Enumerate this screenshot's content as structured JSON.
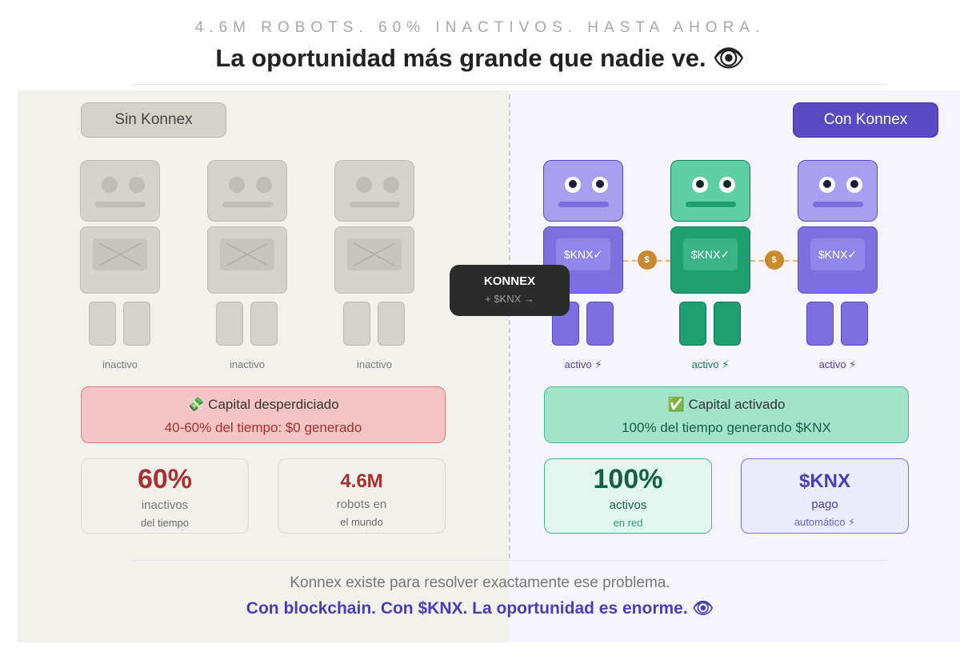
{
  "header": {
    "kicker": "4.6M ROBOTS. 60% INACTIVOS. HASTA AHORA.",
    "title": "La oportunidad más grande que nadie ve. 👁"
  },
  "left": {
    "tag": "Sin Konnex",
    "robots": [
      "inactivo",
      "inactivo",
      "inactivo"
    ],
    "banner": {
      "title": "💸 Capital desperdiciado",
      "text": "40-60% del tiempo: $0 generado"
    },
    "stats": [
      {
        "value": "60%",
        "label": "inactivos",
        "sub": "del tiempo"
      },
      {
        "value": "4.6M",
        "label": "robots en",
        "sub": "el mundo"
      }
    ]
  },
  "bridge": {
    "title": "KONNEX",
    "sub": "+ $KNX →"
  },
  "right": {
    "tag": "Con Konnex",
    "robots": [
      {
        "chest": "$KNX✓",
        "status": "activo ⚡"
      },
      {
        "chest": "$KNX✓",
        "status": "activo ⚡"
      },
      {
        "chest": "$KNX✓",
        "status": "activo ⚡"
      }
    ],
    "coins": [
      "$",
      "$"
    ],
    "banner": {
      "title": "✅ Capital activado",
      "text": "100% del tiempo generando $KNX"
    },
    "stats": [
      {
        "value": "100%",
        "label": "activos",
        "sub": "en red"
      },
      {
        "value": "$KNX",
        "label": "pago",
        "sub": "automático ⚡"
      }
    ]
  },
  "footer": {
    "line1": "Konnex existe para resolver exactamente ese problema.",
    "line2": "Con blockchain. Con $KNX. La oportunidad es enorme. 👁"
  }
}
